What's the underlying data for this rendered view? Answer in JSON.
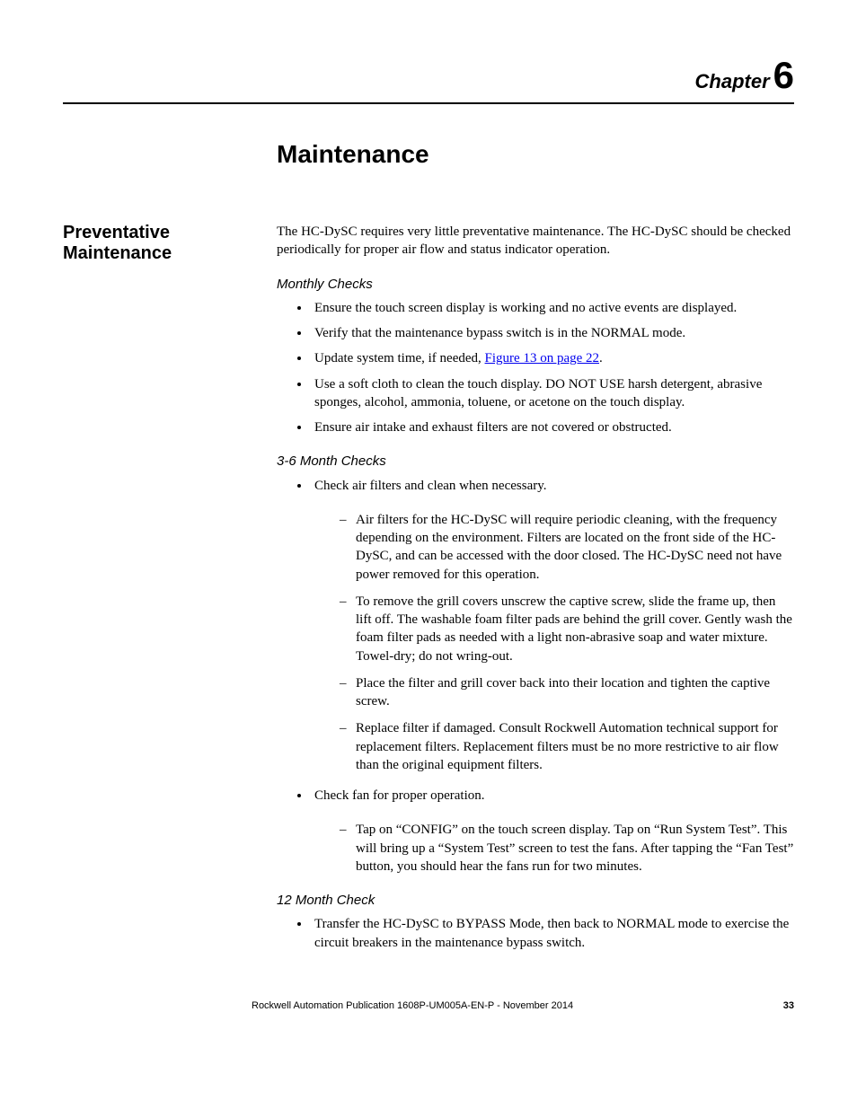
{
  "chapter": {
    "label": "Chapter",
    "number": "6"
  },
  "title": "Maintenance",
  "section": {
    "heading": "Preventative Maintenance",
    "intro": "The HC-DySC requires very little preventative maintenance. The HC-DySC should be checked periodically for proper air flow and status indicator operation.",
    "monthly": {
      "heading": "Monthly Checks",
      "items": [
        "Ensure the touch screen display is working and no active events are displayed.",
        "Verify that the maintenance bypass switch is in the NORMAL mode.",
        "Use a soft cloth to clean the touch display. DO NOT USE harsh detergent, abrasive sponges, alcohol, ammonia, toluene, or acetone on the touch display.",
        "Ensure air intake and exhaust filters are not covered or obstructed."
      ],
      "update_time_prefix": "Update system time, if needed, ",
      "update_time_link": "Figure 13 on page 22",
      "update_time_suffix": "."
    },
    "three_six": {
      "heading": "3-6 Month Checks",
      "item1": "Check air filters and clean when necessary.",
      "sub1": [
        "Air filters for the HC-DySC will require periodic cleaning, with the frequency depending on the environment. Filters are located on the front side of the HC-DySC, and can be accessed with the door closed. The HC-DySC need not have power removed for this operation.",
        "To remove the grill covers unscrew the captive screw, slide the frame up, then lift off. The washable foam filter pads are behind the grill cover. Gently wash the foam filter pads as needed with a light non-abrasive soap and water mixture. Towel-dry; do not wring-out.",
        "Place the filter and grill cover back into their location and tighten the captive screw.",
        "Replace filter if damaged. Consult Rockwell Automation technical support for replacement filters. Replacement filters must be no more restrictive to air flow than the original equipment filters."
      ],
      "item2": "Check fan for proper operation.",
      "sub2": [
        "Tap on “CONFIG” on the touch screen display. Tap on “Run System Test”. This will bring up a “System Test” screen to test the fans. After tapping the “Fan Test” button, you should hear the fans run for two minutes."
      ]
    },
    "twelve": {
      "heading": "12 Month Check",
      "items": [
        "Transfer the HC-DySC to BYPASS Mode, then back to NORMAL mode to exercise the circuit breakers in the maintenance bypass switch."
      ]
    }
  },
  "footer": {
    "publication": "Rockwell Automation Publication 1608P-UM005A-EN-P - November 2014",
    "page": "33"
  }
}
